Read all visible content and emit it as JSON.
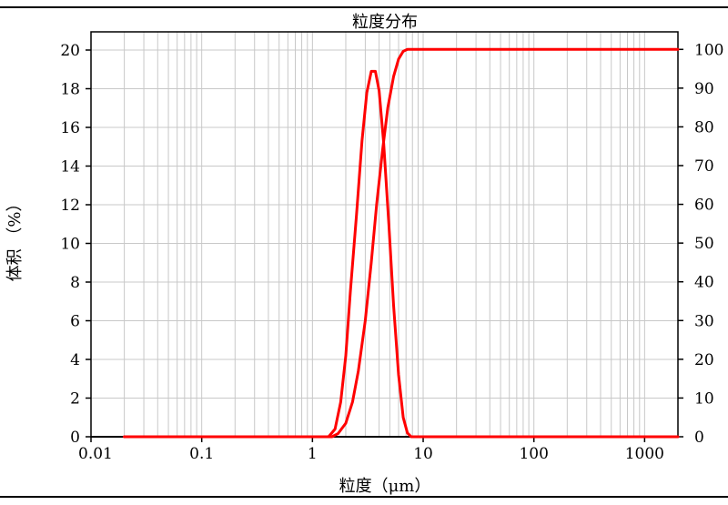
{
  "chart_data": {
    "type": "line",
    "title": "粒度分布",
    "xlabel": "粒度（μm）",
    "ylabel": "体积 （%）",
    "x_scale": "log",
    "xlim": [
      0.01,
      2000
    ],
    "ylim": [
      0,
      20
    ],
    "y2lim": [
      0,
      105
    ],
    "grid": true,
    "x_ticks": [
      {
        "value": 0.01,
        "label": "0.01"
      },
      {
        "value": 0.1,
        "label": "0.1"
      },
      {
        "value": 1,
        "label": "1"
      },
      {
        "value": 10,
        "label": "10"
      },
      {
        "value": 100,
        "label": "100"
      },
      {
        "value": 1000,
        "label": "1000"
      }
    ],
    "y_ticks": [
      "0",
      "2",
      "4",
      "6",
      "8",
      "10",
      "12",
      "14",
      "16",
      "18",
      "20"
    ],
    "y2_ticks": [
      "0",
      "10",
      "20",
      "30",
      "40",
      "50",
      "60",
      "70",
      "80",
      "90",
      "100"
    ],
    "series": [
      {
        "axis": "left",
        "color": "#ff0000",
        "x": [
          0.02,
          1.0,
          1.4,
          1.6,
          1.8,
          2.0,
          2.2,
          2.5,
          2.8,
          3.1,
          3.4,
          3.7,
          4.0,
          4.4,
          4.9,
          5.4,
          6.0,
          6.6,
          7.2,
          7.8,
          8.5,
          10,
          100,
          2000
        ],
        "y": [
          0,
          0,
          0,
          0.4,
          1.8,
          4.2,
          7.5,
          11.5,
          15.3,
          17.8,
          18.9,
          18.9,
          17.9,
          15.2,
          11.0,
          6.8,
          3.2,
          1.0,
          0.2,
          0,
          0,
          0,
          0,
          0
        ]
      },
      {
        "axis": "right",
        "color": "#ff0000",
        "x": [
          0.02,
          1.0,
          1.5,
          1.7,
          2.0,
          2.3,
          2.6,
          3.0,
          3.4,
          3.8,
          4.3,
          4.8,
          5.4,
          6.0,
          6.6,
          7.2,
          10,
          100,
          2000
        ],
        "y": [
          0,
          0,
          0,
          0.8,
          3.5,
          9,
          17,
          30,
          45,
          60,
          74,
          85,
          93,
          97.5,
          99.5,
          100,
          100,
          100,
          100
        ]
      }
    ]
  }
}
